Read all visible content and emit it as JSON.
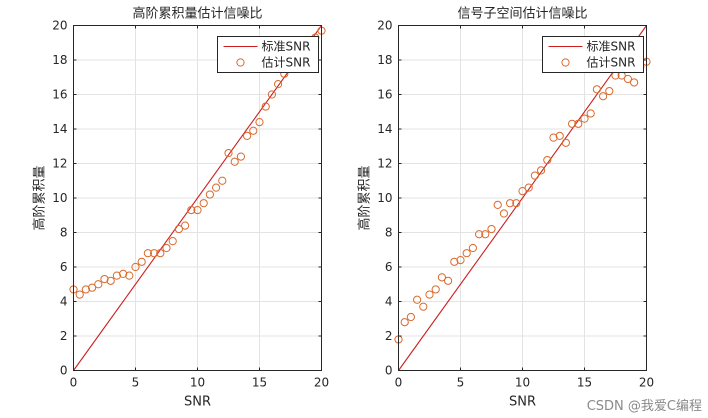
{
  "chart_data": [
    {
      "type": "scatter",
      "title": "高阶累积量估计信噪比",
      "xlabel": "SNR",
      "ylabel": "高阶累积量",
      "xlim": [
        0,
        20
      ],
      "ylim": [
        0,
        20
      ],
      "xticks": [
        0,
        5,
        10,
        15,
        20
      ],
      "yticks": [
        0,
        2,
        4,
        6,
        8,
        10,
        12,
        14,
        16,
        18,
        20
      ],
      "grid": true,
      "legend_position": "top-right",
      "series": [
        {
          "name": "标准SNR",
          "kind": "line",
          "color": "#cc1f1f",
          "x": [
            0,
            20
          ],
          "y": [
            0,
            20
          ]
        },
        {
          "name": "估计SNR",
          "kind": "marker",
          "color": "#d96a2c",
          "x": [
            0,
            0.5,
            1,
            1.5,
            2,
            2.5,
            3,
            3.5,
            4,
            4.5,
            5,
            5.5,
            6,
            6.5,
            7,
            7.5,
            8,
            8.5,
            9,
            9.5,
            10,
            10.5,
            11,
            11.5,
            12,
            12.5,
            13,
            13.5,
            14,
            14.5,
            15,
            15.5,
            16,
            16.5,
            17,
            17.5,
            18,
            18.5,
            19,
            19.5,
            20
          ],
          "y": [
            4.7,
            4.4,
            4.7,
            4.8,
            5.0,
            5.3,
            5.2,
            5.5,
            5.6,
            5.5,
            6.0,
            6.3,
            6.8,
            6.8,
            6.8,
            7.1,
            7.5,
            8.2,
            8.4,
            9.3,
            9.3,
            9.7,
            10.2,
            10.6,
            11.0,
            12.6,
            12.1,
            12.4,
            13.6,
            13.9,
            14.4,
            15.3,
            16.0,
            16.6,
            17.2,
            17.6,
            18.3,
            18.5,
            19.1,
            19.3,
            19.7
          ]
        }
      ]
    },
    {
      "type": "scatter",
      "title": "信号子空间估计信噪比",
      "xlabel": "SNR",
      "ylabel": "高阶累积量",
      "xlim": [
        0,
        20
      ],
      "ylim": [
        0,
        20
      ],
      "xticks": [
        0,
        5,
        10,
        15,
        20
      ],
      "yticks": [
        0,
        2,
        4,
        6,
        8,
        10,
        12,
        14,
        16,
        18,
        20
      ],
      "grid": true,
      "legend_position": "top-right",
      "series": [
        {
          "name": "标准SNR",
          "kind": "line",
          "color": "#cc1f1f",
          "x": [
            0,
            20
          ],
          "y": [
            0,
            20
          ]
        },
        {
          "name": "估计SNR",
          "kind": "marker",
          "color": "#d96a2c",
          "x": [
            0,
            0.5,
            1,
            1.5,
            2,
            2.5,
            3,
            3.5,
            4,
            4.5,
            5,
            5.5,
            6,
            6.5,
            7,
            7.5,
            8,
            8.5,
            9,
            9.5,
            10,
            10.5,
            11,
            11.5,
            12,
            12.5,
            13,
            13.5,
            14,
            14.5,
            15,
            15.5,
            16,
            16.5,
            17,
            17.5,
            18,
            18.5,
            19,
            19.5,
            20
          ],
          "y": [
            1.8,
            2.8,
            3.1,
            4.1,
            3.7,
            4.4,
            4.7,
            5.4,
            5.2,
            6.3,
            6.4,
            6.8,
            7.1,
            7.9,
            7.9,
            8.2,
            9.6,
            9.1,
            9.7,
            9.7,
            10.4,
            10.6,
            11.3,
            11.6,
            12.2,
            13.5,
            13.6,
            13.2,
            14.3,
            14.3,
            14.6,
            14.9,
            16.3,
            15.9,
            16.2,
            17.1,
            17.1,
            16.9,
            16.7,
            17.6,
            17.9
          ]
        }
      ]
    }
  ],
  "watermark": "CSDN @我爱C编程"
}
